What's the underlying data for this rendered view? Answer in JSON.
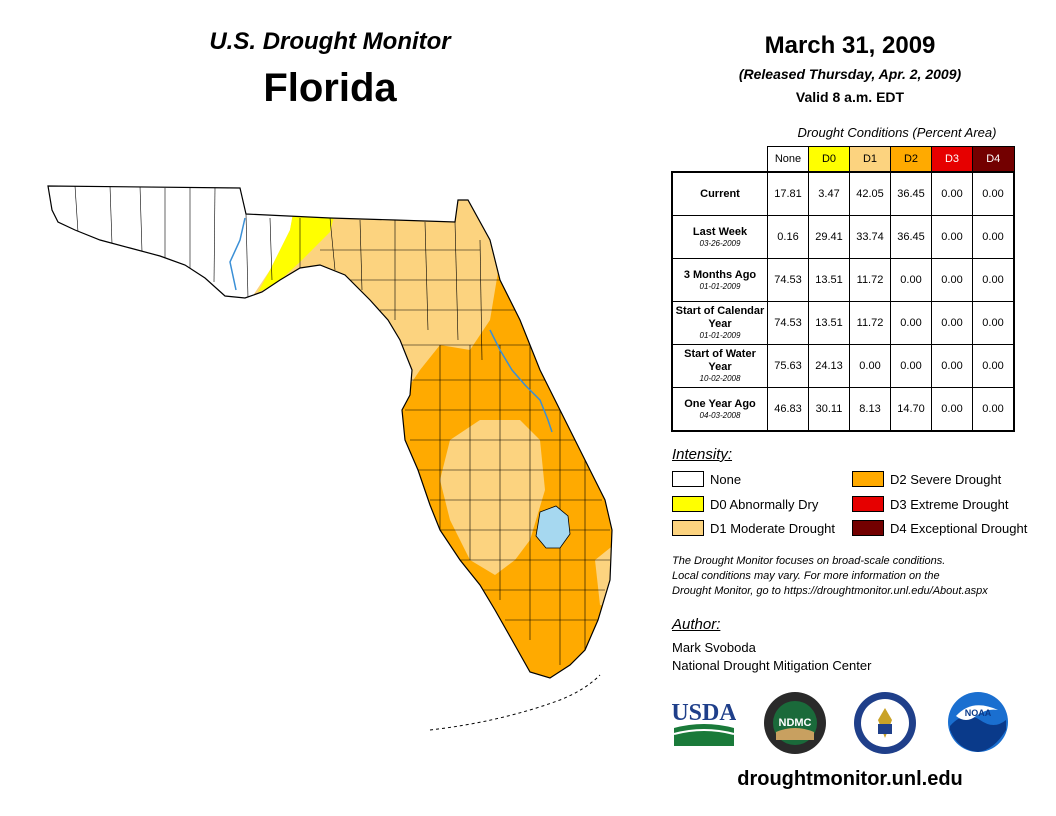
{
  "header": {
    "monitor_title": "U.S. Drought Monitor",
    "state": "Florida"
  },
  "date": {
    "map_date": "March 31, 2009",
    "released": "(Released Thursday, Apr. 2, 2009)",
    "valid": "Valid 8 a.m. EDT"
  },
  "table": {
    "caption": "Drought Conditions (Percent Area)",
    "columns": [
      {
        "label": "None",
        "color": "#ffffff"
      },
      {
        "label": "D0",
        "color": "#ffff00"
      },
      {
        "label": "D1",
        "color": "#fcd37f"
      },
      {
        "label": "D2",
        "color": "#ffaa00"
      },
      {
        "label": "D3",
        "color": "#e60000"
      },
      {
        "label": "D4",
        "color": "#730000"
      }
    ],
    "rows": [
      {
        "label": "Current",
        "sub": "",
        "values": [
          "17.81",
          "3.47",
          "42.05",
          "36.45",
          "0.00",
          "0.00"
        ]
      },
      {
        "label": "Last Week",
        "sub": "03-26-2009",
        "values": [
          "0.16",
          "29.41",
          "33.74",
          "36.45",
          "0.00",
          "0.00"
        ]
      },
      {
        "label": "3 Months Ago",
        "sub": "01-01-2009",
        "values": [
          "74.53",
          "13.51",
          "11.72",
          "0.00",
          "0.00",
          "0.00"
        ]
      },
      {
        "label": "Start of Calendar Year",
        "sub": "01-01-2009",
        "values": [
          "74.53",
          "13.51",
          "11.72",
          "0.00",
          "0.00",
          "0.00"
        ]
      },
      {
        "label": "Start of Water Year",
        "sub": "10-02-2008",
        "values": [
          "75.63",
          "24.13",
          "0.00",
          "0.00",
          "0.00",
          "0.00"
        ]
      },
      {
        "label": "One Year Ago",
        "sub": "04-03-2008",
        "values": [
          "46.83",
          "30.11",
          "8.13",
          "14.70",
          "0.00",
          "0.00"
        ]
      }
    ]
  },
  "legend": {
    "title": "Intensity:",
    "items": [
      {
        "label": "None",
        "color": "#ffffff"
      },
      {
        "label": "D0 Abnormally Dry",
        "color": "#ffff00"
      },
      {
        "label": "D1 Moderate Drought",
        "color": "#fcd37f"
      },
      {
        "label": "D2 Severe Drought",
        "color": "#ffaa00"
      },
      {
        "label": "D3 Extreme Drought",
        "color": "#e60000"
      },
      {
        "label": "D4 Exceptional Drought",
        "color": "#730000"
      }
    ]
  },
  "note": {
    "line1": "The Drought Monitor focuses on broad-scale conditions.",
    "line2": "Local conditions may vary. For more information on the",
    "line3": "Drought Monitor, go to https://droughtmonitor.unl.edu/About.aspx"
  },
  "author": {
    "title": "Author:",
    "name": "Mark Svoboda",
    "org": "National Drought Mitigation Center"
  },
  "logos": {
    "usda": "USDA",
    "ndmc": "NDMC",
    "noaa": "NOAA",
    "commerce_icon": "eagle-seal-icon"
  },
  "site": "droughtmonitor.unl.edu",
  "colors": {
    "none": "#ffffff",
    "d0": "#ffff00",
    "d1": "#fcd37f",
    "d2": "#ffaa00",
    "water": "#a6d8f0",
    "river": "#3a8fd6"
  }
}
